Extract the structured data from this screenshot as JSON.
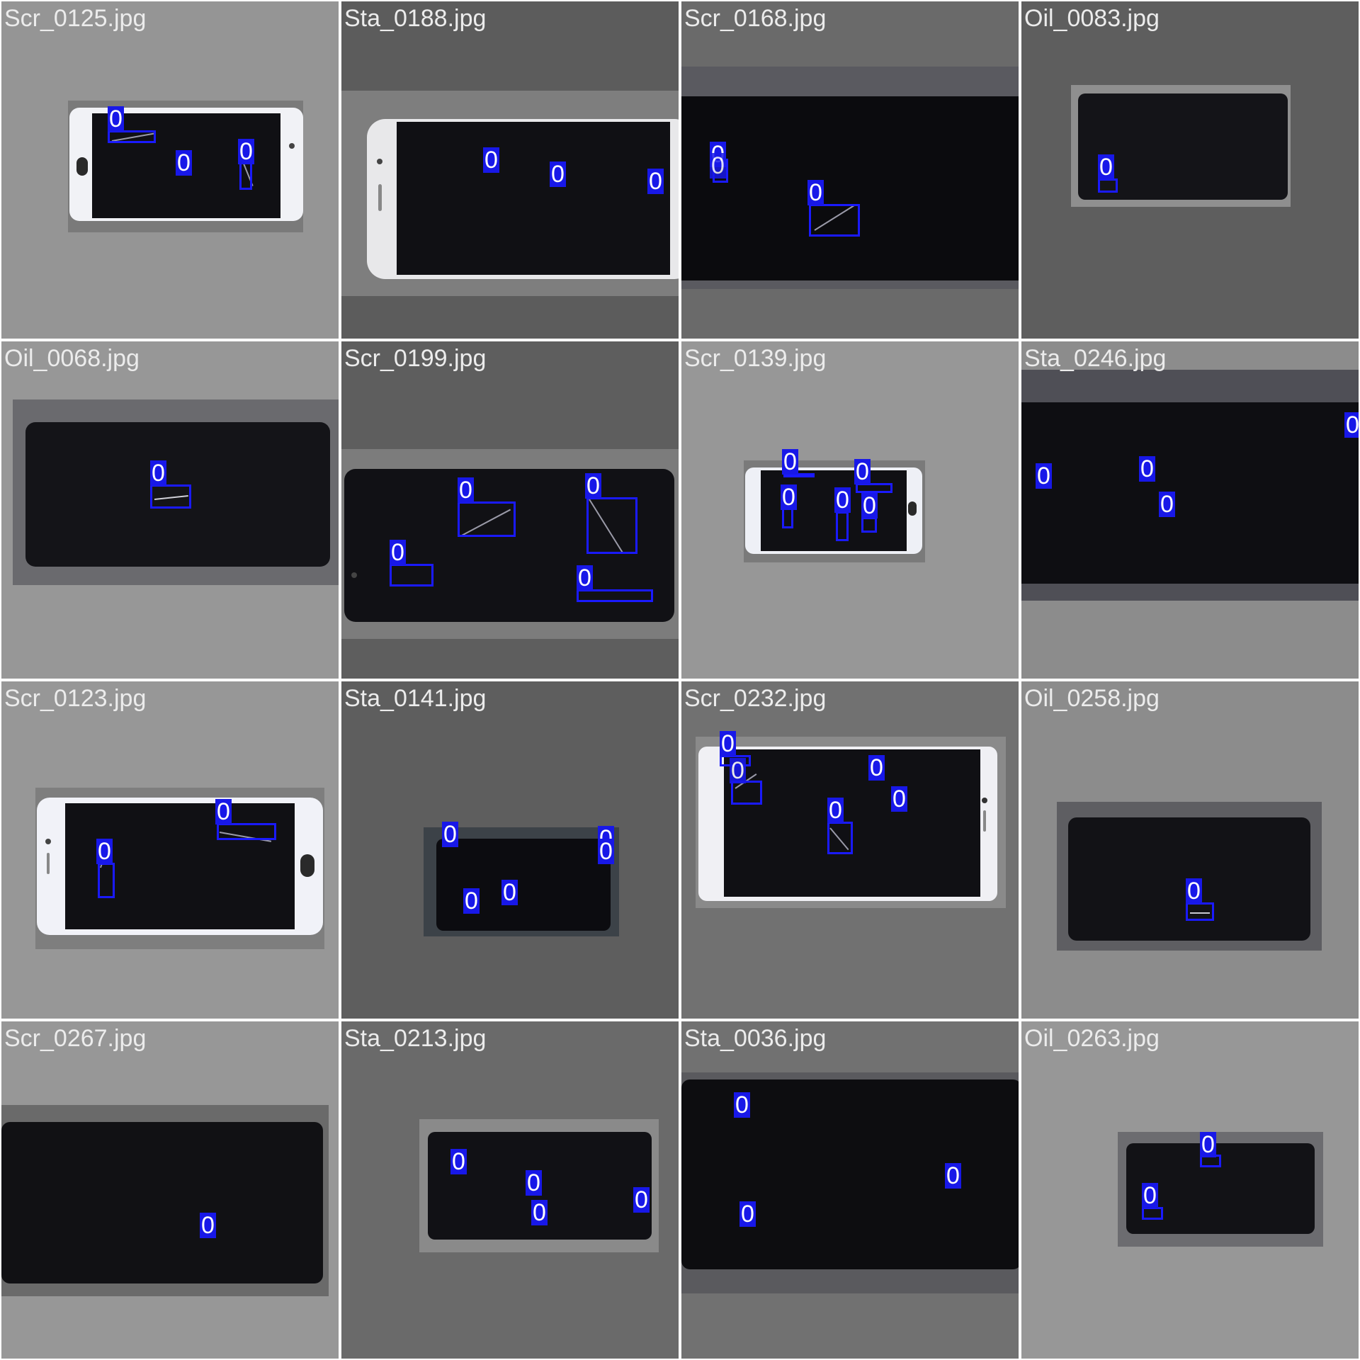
{
  "colors": {
    "box": "#1a1aff",
    "label_bg": "#1818e8",
    "label_text": "#ffffff",
    "caption": "#ececec"
  },
  "tiles": [
    {
      "file": "Scr_0125.jpg",
      "bg": "#959595",
      "detections": [
        "0",
        "0",
        "0"
      ]
    },
    {
      "file": "Sta_0188.jpg",
      "bg": "#5c5c5c",
      "detections": [
        "0",
        "0",
        "0"
      ]
    },
    {
      "file": "Scr_0168.jpg",
      "bg": "#6a6a6a",
      "detections": [
        "0",
        "0",
        "0"
      ]
    },
    {
      "file": "Oil_0083.jpg",
      "bg": "#5e5e5e",
      "detections": [
        "0"
      ]
    },
    {
      "file": "Oil_0068.jpg",
      "bg": "#979797",
      "detections": [
        "0"
      ]
    },
    {
      "file": "Scr_0199.jpg",
      "bg": "#5e5e5e",
      "detections": [
        "0",
        "0",
        "0",
        "0"
      ]
    },
    {
      "file": "Scr_0139.jpg",
      "bg": "#979797",
      "detections": [
        "0",
        "0",
        "0",
        "0",
        "0"
      ]
    },
    {
      "file": "Sta_0246.jpg",
      "bg": "#8c8c8c",
      "detections": [
        "0",
        "0",
        "0",
        "0"
      ]
    },
    {
      "file": "Scr_0123.jpg",
      "bg": "#979797",
      "detections": [
        "0",
        "0"
      ]
    },
    {
      "file": "Sta_0141.jpg",
      "bg": "#5e5e5e",
      "detections": [
        "0",
        "0",
        "0",
        "0",
        "0"
      ]
    },
    {
      "file": "Scr_0232.jpg",
      "bg": "#717171",
      "detections": [
        "0",
        "0",
        "0",
        "0",
        "0"
      ]
    },
    {
      "file": "Oil_0258.jpg",
      "bg": "#8c8c8c",
      "detections": [
        "0"
      ]
    },
    {
      "file": "Scr_0267.jpg",
      "bg": "#979797",
      "detections": [
        "0"
      ]
    },
    {
      "file": "Sta_0213.jpg",
      "bg": "#6a6a6a",
      "detections": [
        "0",
        "0",
        "0",
        "0"
      ]
    },
    {
      "file": "Sta_0036.jpg",
      "bg": "#717171",
      "detections": [
        "0",
        "0",
        "0"
      ]
    },
    {
      "file": "Oil_0263.jpg",
      "bg": "#979797",
      "detections": [
        "0",
        "0"
      ]
    }
  ]
}
